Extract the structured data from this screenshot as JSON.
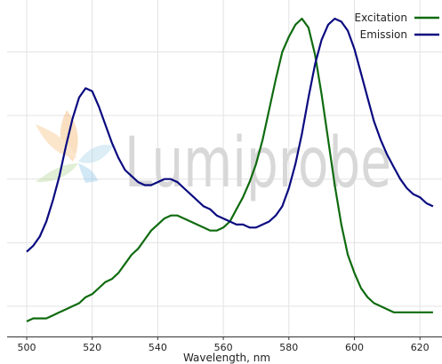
{
  "chart_data": {
    "type": "line",
    "title": "",
    "xlabel": "Wavelength, nm",
    "ylabel": "",
    "xlim": [
      495,
      628
    ],
    "ylim": [
      0,
      1.03
    ],
    "grid": true,
    "legend_position": "top-right",
    "xticks": [
      500,
      520,
      540,
      560,
      580,
      600,
      620
    ],
    "tick_labels": [
      "500",
      "520",
      "540",
      "560",
      "580",
      "600",
      "620"
    ],
    "watermark": "Lumiprobe",
    "series": [
      {
        "name": "Excitation",
        "color": "#0f6b0f",
        "x": [
          500,
          502,
          504,
          506,
          508,
          510,
          512,
          514,
          516,
          518,
          520,
          522,
          524,
          526,
          528,
          530,
          532,
          534,
          536,
          538,
          540,
          542,
          544,
          546,
          548,
          550,
          552,
          554,
          556,
          558,
          560,
          562,
          564,
          566,
          568,
          570,
          572,
          574,
          576,
          578,
          580,
          582,
          584,
          586,
          588,
          590,
          592,
          594,
          596,
          598,
          600,
          602,
          604,
          606,
          608,
          610,
          612,
          614,
          616,
          618,
          620,
          622,
          624
        ],
        "y": [
          0.0,
          0.01,
          0.01,
          0.01,
          0.02,
          0.03,
          0.04,
          0.05,
          0.06,
          0.08,
          0.09,
          0.11,
          0.13,
          0.14,
          0.16,
          0.19,
          0.22,
          0.24,
          0.27,
          0.3,
          0.32,
          0.34,
          0.35,
          0.35,
          0.34,
          0.33,
          0.32,
          0.31,
          0.3,
          0.3,
          0.31,
          0.33,
          0.37,
          0.41,
          0.46,
          0.52,
          0.6,
          0.7,
          0.8,
          0.89,
          0.94,
          0.98,
          1.0,
          0.97,
          0.88,
          0.75,
          0.6,
          0.45,
          0.32,
          0.22,
          0.16,
          0.11,
          0.08,
          0.06,
          0.05,
          0.04,
          0.03,
          0.03,
          0.03,
          0.03,
          0.03,
          0.03,
          0.03
        ]
      },
      {
        "name": "Emission",
        "color": "#0a0a80",
        "x": [
          500,
          502,
          504,
          506,
          508,
          510,
          512,
          514,
          516,
          518,
          520,
          522,
          524,
          526,
          528,
          530,
          532,
          534,
          536,
          538,
          540,
          542,
          544,
          546,
          548,
          550,
          552,
          554,
          556,
          558,
          560,
          562,
          564,
          566,
          568,
          570,
          572,
          574,
          576,
          578,
          580,
          582,
          584,
          586,
          588,
          590,
          592,
          594,
          596,
          598,
          600,
          602,
          604,
          606,
          608,
          610,
          612,
          614,
          616,
          618,
          620,
          622,
          624
        ],
        "y": [
          0.23,
          0.25,
          0.28,
          0.33,
          0.4,
          0.48,
          0.58,
          0.67,
          0.74,
          0.77,
          0.76,
          0.71,
          0.65,
          0.59,
          0.54,
          0.5,
          0.48,
          0.46,
          0.45,
          0.45,
          0.46,
          0.47,
          0.47,
          0.46,
          0.44,
          0.42,
          0.4,
          0.38,
          0.37,
          0.35,
          0.34,
          0.33,
          0.32,
          0.32,
          0.31,
          0.31,
          0.32,
          0.33,
          0.35,
          0.38,
          0.44,
          0.52,
          0.62,
          0.74,
          0.85,
          0.93,
          0.98,
          1.0,
          0.99,
          0.96,
          0.9,
          0.82,
          0.74,
          0.66,
          0.6,
          0.55,
          0.51,
          0.47,
          0.44,
          0.42,
          0.41,
          0.39,
          0.38
        ]
      }
    ]
  }
}
